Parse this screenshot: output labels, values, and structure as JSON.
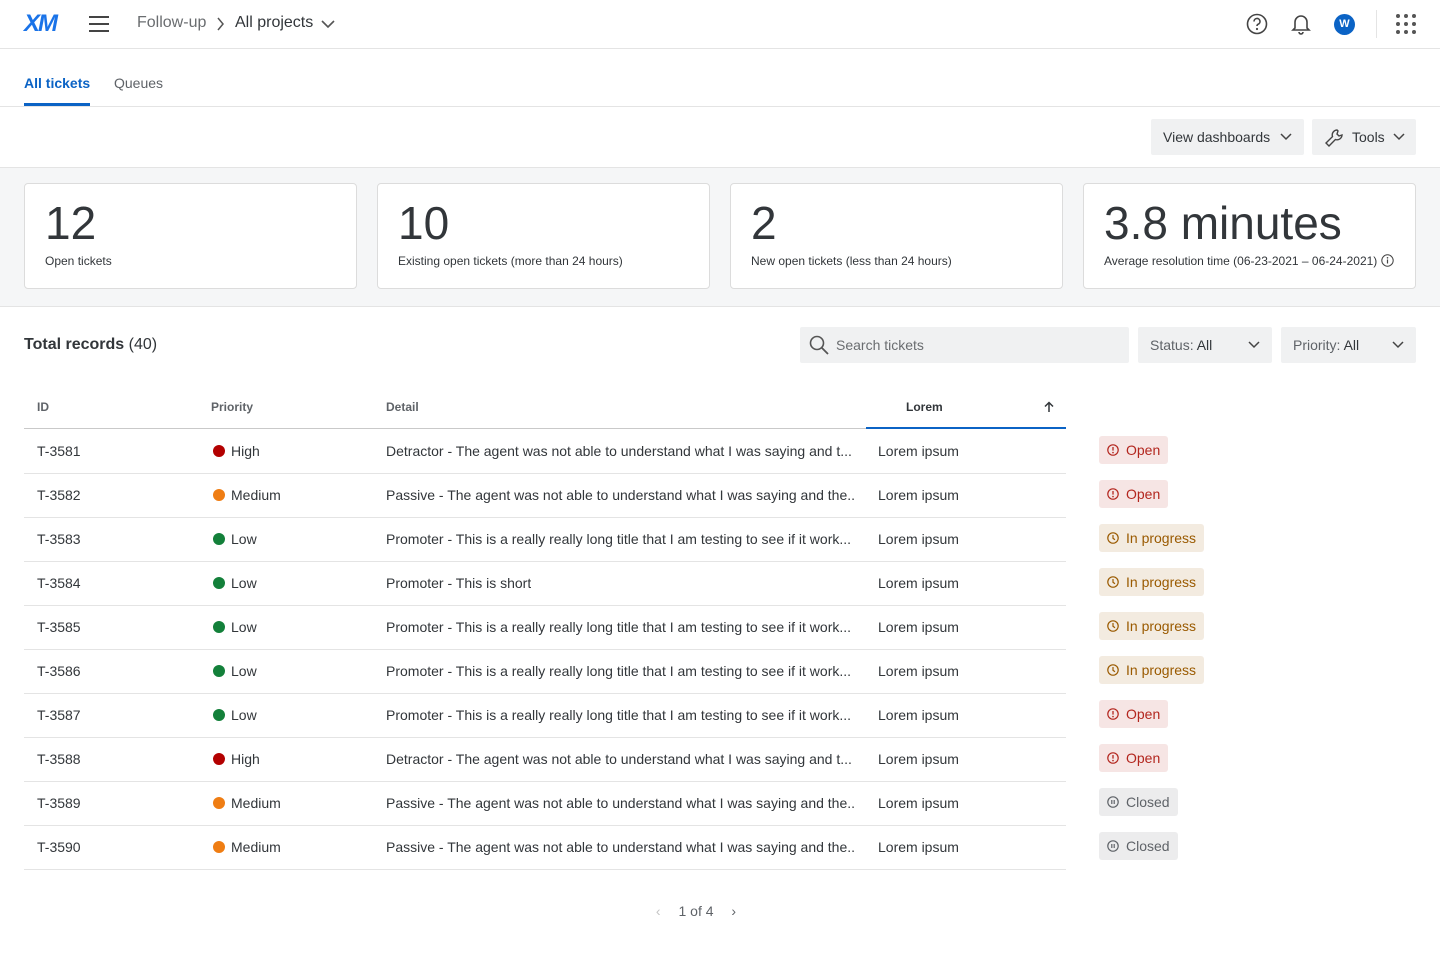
{
  "header": {
    "logo": "XM",
    "breadcrumb": [
      "Follow-up",
      "All projects"
    ],
    "avatar": "W"
  },
  "tabs": [
    "All tickets",
    "Queues"
  ],
  "actions": [
    "View dashboards",
    "Tools"
  ],
  "stats": [
    {
      "value": 12,
      "label": "Open tickets"
    },
    {
      "value": 10,
      "label": "Existing open tickets (more than 24 hours)"
    },
    {
      "value": 2,
      "label": "New open tickets (less than 24 hours)"
    },
    {
      "value": "3.8 minutes",
      "label": "Average resolution time (06-23-2021 – 06-24-2021)"
    }
  ],
  "records": {
    "title": "Total records",
    "count": "(40)"
  },
  "search": {
    "placeholder": "Search tickets"
  },
  "filters": [
    {
      "label": "Status:",
      "value": "All"
    },
    {
      "label": "Priority:",
      "value": "All"
    }
  ],
  "table": {
    "columns": [
      "ID",
      "Priority",
      "Detail",
      "Lorem"
    ],
    "rows": [
      {
        "id": "T-3581",
        "priority": "High",
        "priority_color": "#b30000",
        "detail": "Detractor - The agent was not able to understand what I was saying and t...",
        "lorem": "Lorem ipsum",
        "status": "Open",
        "status_color": "#b3261e"
      },
      {
        "id": "T-3582",
        "priority": "Medium",
        "priority_color": "#ef7d13",
        "detail": "Passive - The agent was not able to understand what I was saying and the...",
        "lorem": "Lorem ipsum",
        "status": "Open",
        "status_color": "#b3261e"
      },
      {
        "id": "T-3583",
        "priority": "Low",
        "priority_color": "#13803a",
        "detail": "Promoter - This is a really really long title that I am testing to see if it work...",
        "lorem": "Lorem ipsum",
        "status": "In progress",
        "status_color": "#9a5a00"
      },
      {
        "id": "T-3584",
        "priority": "Low",
        "priority_color": "#13803a",
        "detail": "Promoter - This is short",
        "lorem": "Lorem ipsum",
        "status": "In progress",
        "status_color": "#9a5a00"
      },
      {
        "id": "T-3585",
        "priority": "Low",
        "priority_color": "#13803a",
        "detail": "Promoter - This is a really really long title that I am testing to see if it work...",
        "lorem": "Lorem ipsum",
        "status": "In progress",
        "status_color": "#9a5a00"
      },
      {
        "id": "T-3586",
        "priority": "Low",
        "priority_color": "#13803a",
        "detail": "Promoter - This is a really really long title that I am testing to see if it work...",
        "lorem": "Lorem ipsum",
        "status": "In progress",
        "status_color": "#9a5a00"
      },
      {
        "id": "T-3587",
        "priority": "Low",
        "priority_color": "#13803a",
        "detail": "Promoter - This is a really really long title that I am testing to see if it work...",
        "lorem": "Lorem ipsum",
        "status": "Open",
        "status_color": "#b3261e"
      },
      {
        "id": "T-3588",
        "priority": "High",
        "priority_color": "#b30000",
        "detail": "Detractor - The agent was not able to understand what I was saying and t...",
        "lorem": "Lorem ipsum",
        "status": "Open",
        "status_color": "#b3261e"
      },
      {
        "id": "T-3589",
        "priority": "Medium",
        "priority_color": "#ef7d13",
        "detail": "Passive - The agent was not able to understand what I was saying and the...",
        "lorem": "Lorem ipsum",
        "status": "Closed",
        "status_color": "#5f6368"
      },
      {
        "id": "T-3590",
        "priority": "Medium",
        "priority_color": "#ef7d13",
        "detail": "Passive - The agent was not able to understand what I was saying and the...",
        "lorem": "Lorem ipsum",
        "status": "Closed",
        "status_color": "#5f6368"
      }
    ]
  },
  "pagination": "1 of 4"
}
